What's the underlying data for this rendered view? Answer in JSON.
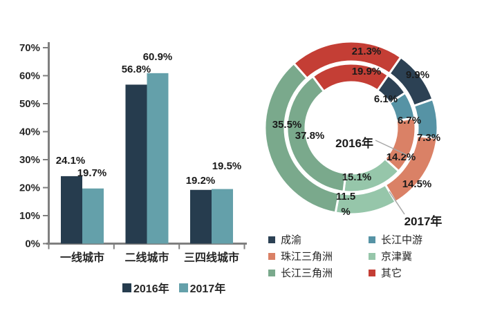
{
  "chart_data": [
    {
      "id": "city-tier-bar",
      "type": "bar",
      "title": "",
      "categories": [
        "一线城市",
        "二线城市",
        "三四线城市"
      ],
      "series": [
        {
          "name": "2016年",
          "color": "#263c4e",
          "values": [
            24.1,
            56.8,
            19.2
          ]
        },
        {
          "name": "2017年",
          "color": "#64a0aa",
          "values": [
            19.7,
            60.9,
            19.5
          ]
        }
      ],
      "value_labels": [
        "24.1%",
        "19.7%",
        "56.8%",
        "60.9%",
        "19.2%",
        "19.5%"
      ],
      "value_suffix": "%",
      "ylim": [
        0,
        70
      ],
      "yticks": [
        0,
        10,
        20,
        30,
        40,
        50,
        60,
        70
      ],
      "ytick_suffix": "%",
      "grid": false,
      "legend_position": "bottom"
    },
    {
      "id": "region-share-donut",
      "type": "donut",
      "title": "",
      "categories": [
        "成渝",
        "长江中游",
        "珠江三角洲",
        "京津冀",
        "长江三角洲",
        "其它"
      ],
      "category_colors": [
        "#2c4154",
        "#5693a5",
        "#da8166",
        "#96c6aa",
        "#7aa98c",
        "#c43e35"
      ],
      "rings": [
        {
          "name": "2016年",
          "position": "inner",
          "values": [
            6.1,
            6.7,
            14.2,
            15.1,
            37.8,
            19.9
          ]
        },
        {
          "name": "2017年",
          "position": "outer",
          "values": [
            9.9,
            7.3,
            14.5,
            11.5,
            35.5,
            21.3
          ]
        }
      ],
      "rotation_deg": 35,
      "value_suffix": "%",
      "legend_position": "bottom",
      "legend_columns": 2
    }
  ],
  "colors": {
    "background": "#ffffff",
    "axis": "#7f7f7f",
    "text": "#262626",
    "label_text": "#1a1a1a",
    "callout_line": "#a6a6a6"
  }
}
